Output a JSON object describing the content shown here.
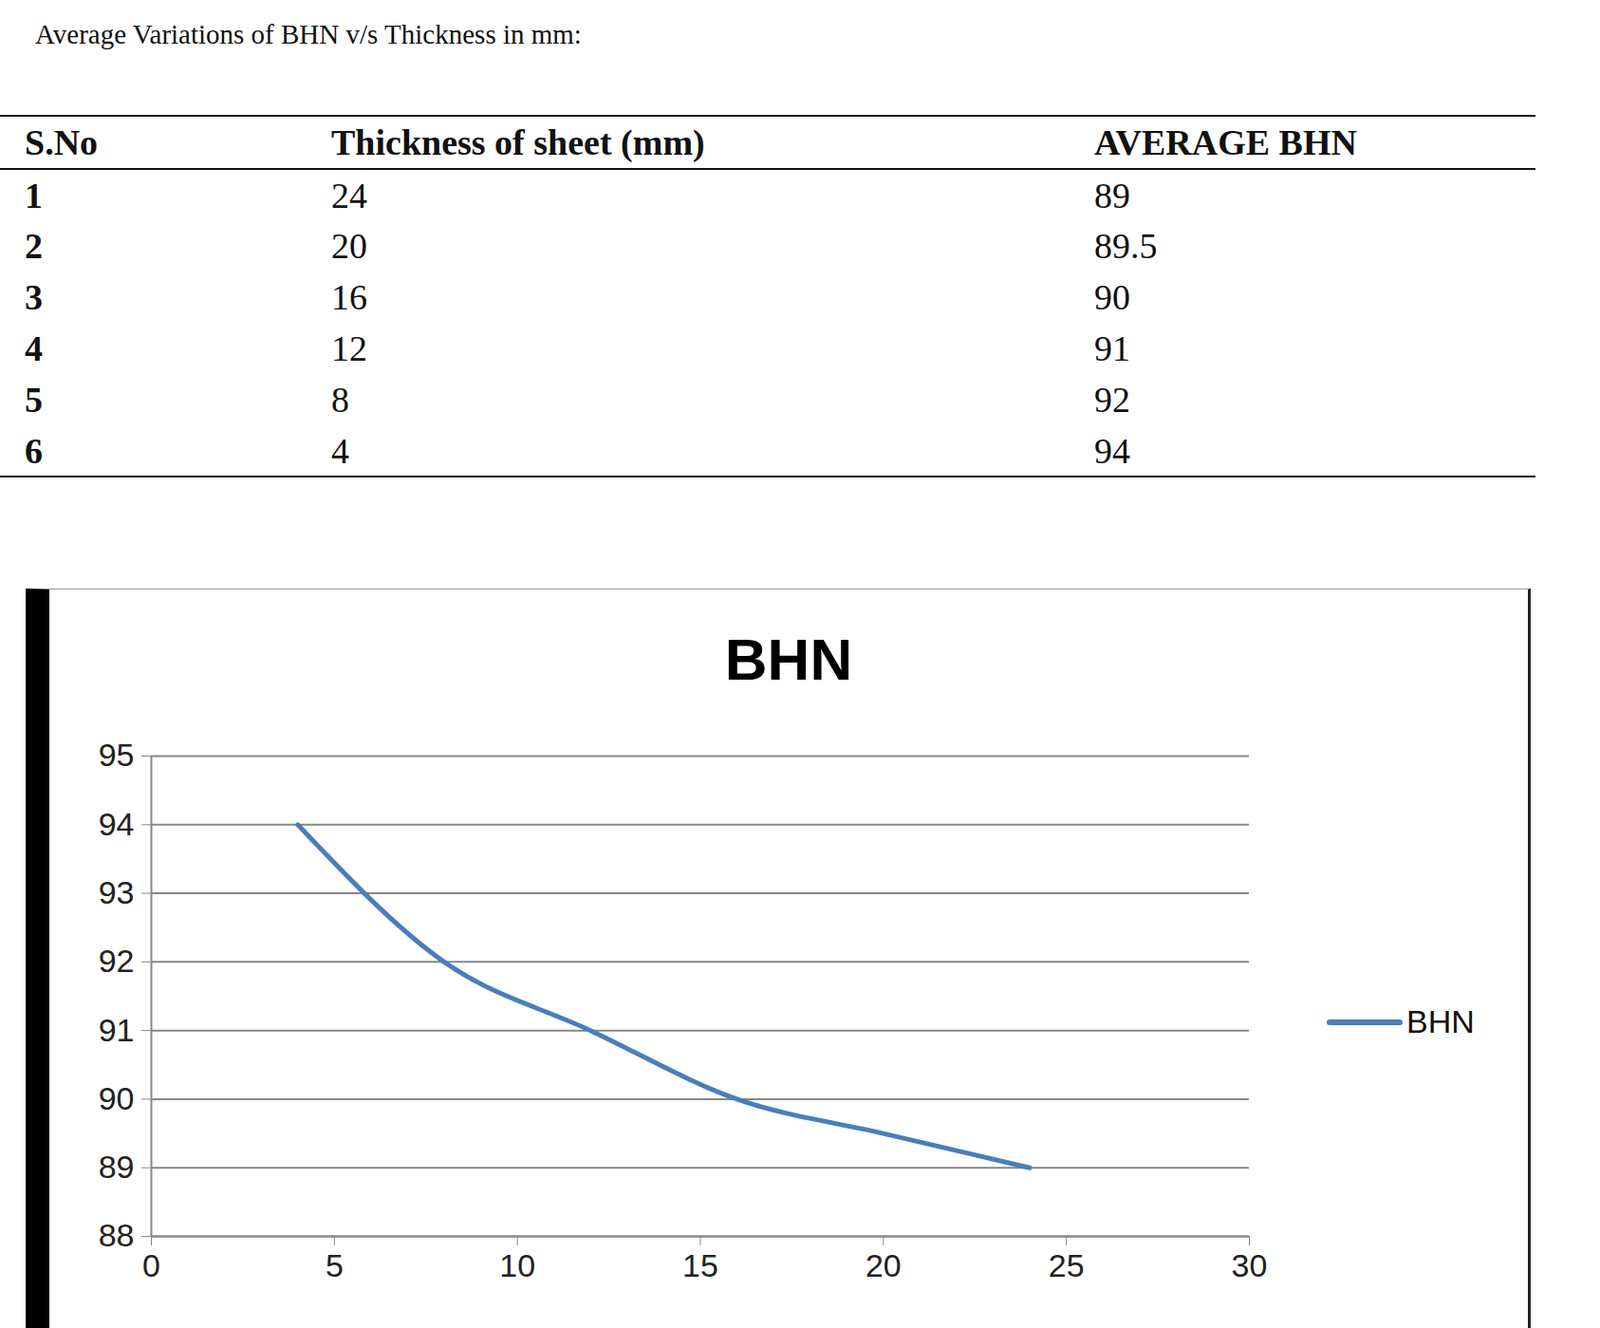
{
  "heading": "Average Variations of BHN v/s Thickness in mm:",
  "table": {
    "columns": [
      "S.No",
      "Thickness of sheet (mm)",
      "AVERAGE BHN"
    ],
    "rows": [
      [
        1,
        24,
        89
      ],
      [
        2,
        20,
        89.5
      ],
      [
        3,
        16,
        90
      ],
      [
        4,
        12,
        91
      ],
      [
        5,
        8,
        92
      ],
      [
        6,
        4,
        94
      ]
    ]
  },
  "chart_data": {
    "type": "line",
    "title": "BHN",
    "x": [
      4,
      8,
      12,
      16,
      20,
      24
    ],
    "series": [
      {
        "name": "BHN",
        "color": "#4a7ebb",
        "values": [
          94,
          92,
          91,
          90,
          89.5,
          89
        ]
      }
    ],
    "xlim": [
      0,
      30
    ],
    "xticks": [
      0,
      5,
      10,
      15,
      20,
      25,
      30
    ],
    "ylim": [
      88,
      95
    ],
    "yticks": [
      88,
      89,
      90,
      91,
      92,
      93,
      94,
      95
    ],
    "grid": true,
    "legend": "right",
    "line_style": "smooth"
  }
}
